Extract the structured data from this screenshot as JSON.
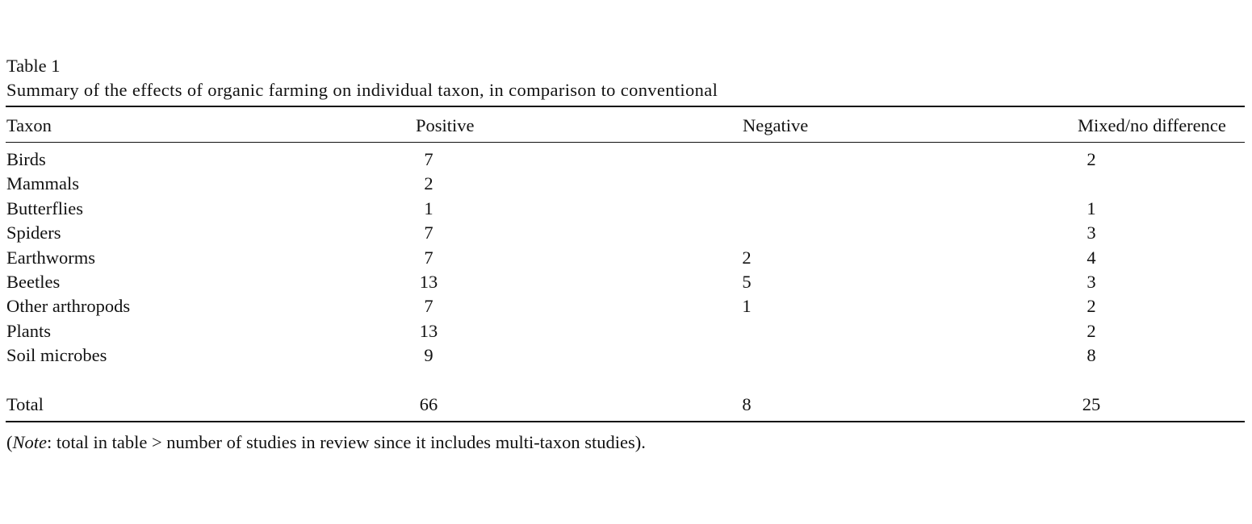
{
  "table": {
    "label": "Table 1",
    "caption": "Summary of the effects of organic farming on individual taxon, in comparison to conventional",
    "columns": [
      "Taxon",
      "Positive",
      "Negative",
      "Mixed/no difference"
    ],
    "rows": [
      [
        "Birds",
        "7",
        "",
        "2"
      ],
      [
        "Mammals",
        "2",
        "",
        ""
      ],
      [
        "Butterflies",
        "1",
        "",
        "1"
      ],
      [
        "Spiders",
        "7",
        "",
        "3"
      ],
      [
        "Earthworms",
        "7",
        "2",
        "4"
      ],
      [
        "Beetles",
        "13",
        "5",
        "3"
      ],
      [
        "Other arthropods",
        "7",
        "1",
        "2"
      ],
      [
        "Plants",
        "13",
        "",
        "2"
      ],
      [
        "Soil microbes",
        "9",
        "",
        "8"
      ]
    ],
    "total": [
      "Total",
      "66",
      "8",
      "25"
    ],
    "note_open": "(",
    "note_italic": "Note",
    "note_rest": ": total in table > number of studies in review since it includes multi-taxon studies)."
  }
}
